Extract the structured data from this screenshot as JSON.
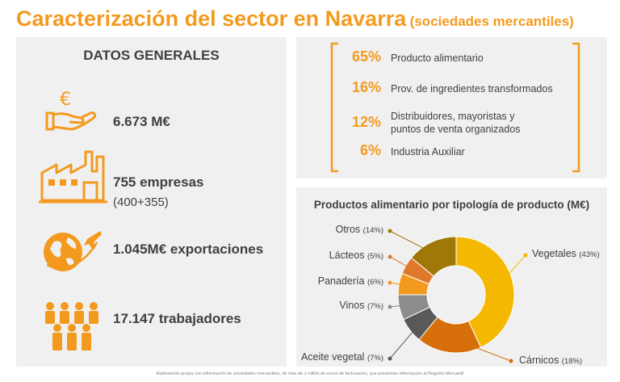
{
  "header": {
    "title": "Caracterización del sector en Navarra",
    "subtitle": "(sociedades mercantiles)"
  },
  "general": {
    "heading": "DATOS GENERALES",
    "stats": [
      {
        "icon": "euro-hand-icon",
        "value": "6.673 M€",
        "sub": ""
      },
      {
        "icon": "factory-icon",
        "value": "755 empresas",
        "sub": "(400+355)"
      },
      {
        "icon": "globe-plane-icon",
        "value": "1.045M€ exportaciones",
        "sub": ""
      },
      {
        "icon": "workers-icon",
        "value": "17.147 trabajadores",
        "sub": ""
      }
    ]
  },
  "segments": [
    {
      "pct": "65%",
      "label": "Producto alimentario",
      "label2": ""
    },
    {
      "pct": "16%",
      "label": "Prov. de ingredientes transformados",
      "label2": ""
    },
    {
      "pct": "12%",
      "label": "Distribuidores, mayoristas y",
      "label2": "puntos de venta organizados"
    },
    {
      "pct": "6%",
      "label": "Industria Auxiliar",
      "label2": ""
    }
  ],
  "chart_data": {
    "type": "pie",
    "title": "Productos alimentario por tipología de producto (M€)",
    "slices": [
      {
        "name": "Vegetales",
        "pct_label": "(43%)",
        "value": 43,
        "color": "#f5b800"
      },
      {
        "name": "Cárnicos",
        "pct_label": "(18%)",
        "value": 18,
        "color": "#d66f0a"
      },
      {
        "name": "Aceite vegetal",
        "pct_label": "(7%)",
        "value": 7,
        "color": "#595959"
      },
      {
        "name": "Vinos",
        "pct_label": "(7%)",
        "value": 7,
        "color": "#8c8c8c"
      },
      {
        "name": "Panadería",
        "pct_label": "(6%)",
        "value": 6,
        "color": "#f39a1e"
      },
      {
        "name": "Lácteos",
        "pct_label": "(5%)",
        "value": 5,
        "color": "#e0782b"
      },
      {
        "name": "Otros",
        "pct_label": "(14%)",
        "value": 14,
        "color": "#a07808"
      }
    ]
  },
  "footnote": "Elaboración propia con información de sociedades mercantiles, de más de 1 millón de euros de facturación, que presentan información al Registro Mercantil",
  "colors": {
    "accent": "#f39a1e",
    "panel": "#f0f0f0",
    "text": "#404040"
  }
}
